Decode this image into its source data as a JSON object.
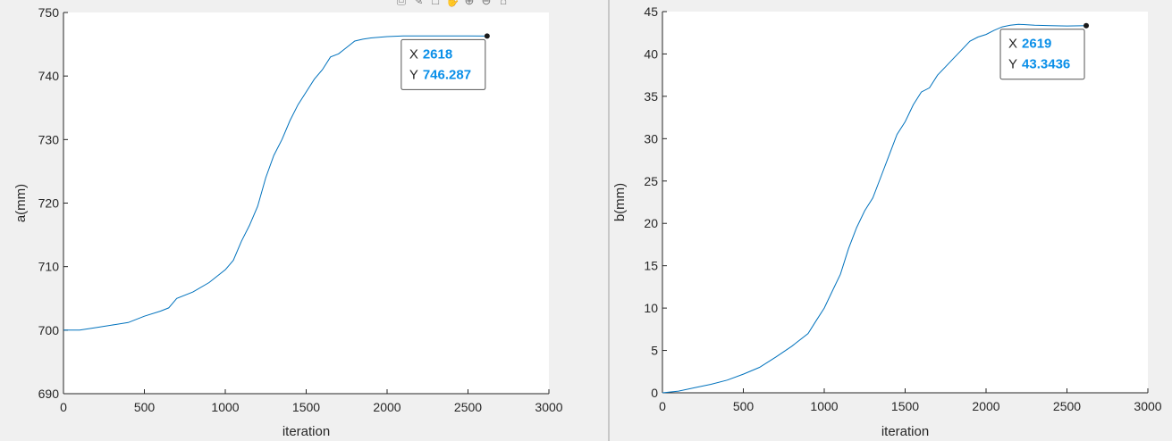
{
  "toolbar": {
    "icons": [
      "export-icon",
      "brush-icon",
      "data-tip-icon",
      "pan-icon",
      "zoom-in-icon",
      "zoom-out-icon",
      "home-icon"
    ]
  },
  "colors": {
    "line": "#0072BD",
    "datatip_value": "#0a8fe8",
    "axes": "#262626"
  },
  "chart_data": [
    {
      "type": "line",
      "xlabel": "iteration",
      "ylabel": "a(mm)",
      "xlim": [
        0,
        3000
      ],
      "ylim": [
        690,
        750
      ],
      "xticks": [
        0,
        500,
        1000,
        1500,
        2000,
        2500,
        3000
      ],
      "yticks": [
        690,
        700,
        710,
        720,
        730,
        740,
        750
      ],
      "grid": false,
      "series": [
        {
          "x": [
            0,
            100,
            200,
            300,
            400,
            500,
            600,
            650,
            700,
            800,
            900,
            1000,
            1050,
            1100,
            1150,
            1200,
            1250,
            1300,
            1350,
            1400,
            1450,
            1500,
            1550,
            1600,
            1650,
            1700,
            1750,
            1800,
            1850,
            1900,
            2000,
            2100,
            2200,
            2300,
            2400,
            2500,
            2618
          ],
          "y": [
            700,
            700,
            700.4,
            700.8,
            701.2,
            702.2,
            703,
            703.5,
            705,
            706,
            707.5,
            709.5,
            711,
            714,
            716.5,
            719.5,
            724,
            727.5,
            730,
            733,
            735.5,
            737.5,
            739.5,
            741,
            743,
            743.5,
            744.5,
            745.5,
            745.8,
            746,
            746.2,
            746.3,
            746.3,
            746.3,
            746.3,
            746.3,
            746.287
          ]
        }
      ],
      "datatip": {
        "x_label": "X",
        "x_value": "2618",
        "y_label": "Y",
        "y_value": "746.287",
        "x": 2618,
        "y": 746.287
      }
    },
    {
      "type": "line",
      "xlabel": "iteration",
      "ylabel": "b(mm)",
      "xlim": [
        0,
        3000
      ],
      "ylim": [
        0,
        45
      ],
      "xticks": [
        0,
        500,
        1000,
        1500,
        2000,
        2500,
        3000
      ],
      "yticks": [
        0,
        5,
        10,
        15,
        20,
        25,
        30,
        35,
        40,
        45
      ],
      "grid": false,
      "series": [
        {
          "x": [
            0,
            100,
            200,
            300,
            400,
            500,
            600,
            700,
            800,
            900,
            950,
            1000,
            1050,
            1100,
            1150,
            1200,
            1250,
            1300,
            1350,
            1400,
            1450,
            1500,
            1550,
            1600,
            1650,
            1700,
            1750,
            1800,
            1850,
            1900,
            1950,
            2000,
            2050,
            2100,
            2150,
            2200,
            2300,
            2400,
            2500,
            2619
          ],
          "y": [
            0,
            0.2,
            0.6,
            1,
            1.5,
            2.2,
            3,
            4.2,
            5.5,
            7,
            8.5,
            10,
            12,
            14,
            17,
            19.5,
            21.5,
            23,
            25.5,
            28,
            30.5,
            32,
            34,
            35.5,
            36,
            37.5,
            38.5,
            39.5,
            40.5,
            41.5,
            42,
            42.3,
            42.8,
            43.2,
            43.4,
            43.5,
            43.4,
            43.35,
            43.3,
            43.3436
          ]
        }
      ],
      "datatip": {
        "x_label": "X",
        "x_value": "2619",
        "y_label": "Y",
        "y_value": "43.3436",
        "x": 2619,
        "y": 43.3436
      }
    }
  ]
}
